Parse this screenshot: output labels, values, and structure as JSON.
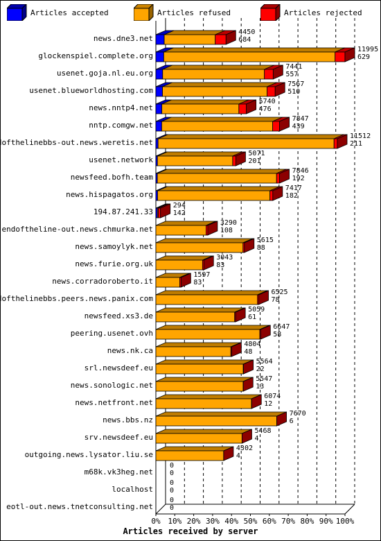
{
  "legend": [
    {
      "label": "Articles accepted",
      "color": "#0000ff"
    },
    {
      "label": "Articles refused",
      "color": "#ffa500"
    },
    {
      "label": "Articles rejected",
      "color": "#ff0000"
    }
  ],
  "chart_data": {
    "type": "bar",
    "orientation": "horizontal",
    "stacked": true,
    "xlabel": "Articles received by server",
    "xlim_percent": [
      0,
      100
    ],
    "x_ticks": [
      "0%",
      "10%",
      "20%",
      "30%",
      "40%",
      "50%",
      "60%",
      "70%",
      "80%",
      "90%",
      "100%"
    ],
    "grid": "vertical dashed",
    "legend_position": "top",
    "categories": [
      "news.dne3.net",
      "glockenspiel.complete.org",
      "usenet.goja.nl.eu.org",
      "usenet.blueworldhosting.com",
      "news.nntp4.net",
      "nntp.comgw.net",
      "endofthelinebbs-out.news.weretis.net",
      "usenet.network",
      "newsfeed.bofh.team",
      "news.hispagatos.org",
      "194.87.241.33",
      "endoftheline-out.news.chmurka.net",
      "news.samoylyk.net",
      "news.furie.org.uk",
      "news.corradoroberto.it",
      "endofthelinebbs.peers.news.panix.com",
      "newsfeed.xs3.de",
      "peering.usenet.ovh",
      "news.nk.ca",
      "srl.newsdeef.eu",
      "news.sonologic.net",
      "news.netfront.net",
      "news.bbs.nz",
      "srv.newsdeef.eu",
      "outgoing.news.lysator.liu.se",
      "m68k.vk3heg.net",
      "localhost",
      "eotl-out.news.tnetconsulting.net"
    ],
    "total_labels": [
      "4450",
      "11995",
      "7441",
      "7567",
      "5740",
      "7847",
      "11512",
      "5071",
      "7846",
      "7417",
      "294",
      "3290",
      "5615",
      "3043",
      "1597",
      "6525",
      "5059",
      "6647",
      "4804",
      "5564",
      "5547",
      "6074",
      "7670",
      "5468",
      "4302",
      "0",
      "0",
      "0"
    ],
    "rejected_labels": [
      "684",
      "629",
      "557",
      "510",
      "476",
      "439",
      "211",
      "201",
      "192",
      "182",
      "142",
      "108",
      "88",
      "83",
      "83",
      "78",
      "61",
      "58",
      "48",
      "22",
      "13",
      "12",
      "6",
      "4",
      "4",
      "0",
      "0",
      "0"
    ],
    "series": [
      {
        "name": "Articles accepted",
        "values": [
          530,
          500,
          430,
          420,
          380,
          370,
          140,
          100,
          95,
          110,
          100,
          0,
          0,
          0,
          0,
          0,
          0,
          0,
          0,
          0,
          0,
          0,
          0,
          0,
          0,
          0,
          0,
          0
        ]
      },
      {
        "name": "Articles refused",
        "values": [
          3236,
          10866,
          6454,
          6637,
          4884,
          7038,
          11161,
          4770,
          7559,
          7125,
          52,
          3182,
          5527,
          2960,
          1514,
          6447,
          4998,
          6589,
          4756,
          5542,
          5534,
          6062,
          7664,
          5464,
          4298,
          0,
          0,
          0
        ]
      },
      {
        "name": "Articles rejected",
        "values": [
          684,
          629,
          557,
          510,
          476,
          439,
          211,
          201,
          192,
          182,
          142,
          108,
          88,
          83,
          83,
          78,
          61,
          58,
          48,
          22,
          13,
          12,
          6,
          4,
          4,
          0,
          0,
          0
        ]
      }
    ]
  }
}
